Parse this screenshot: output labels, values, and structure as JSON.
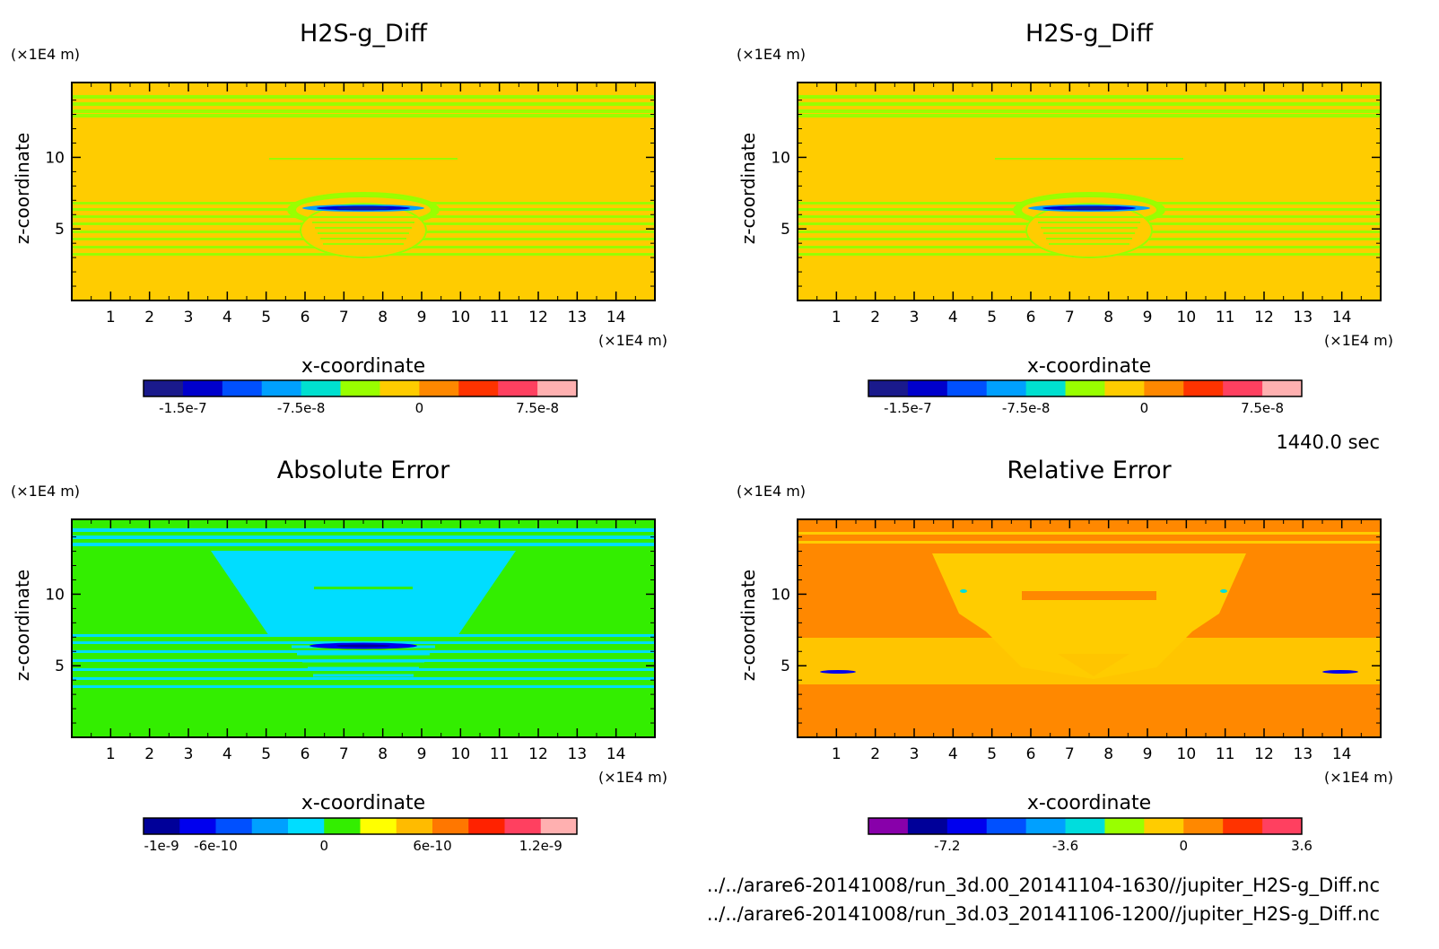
{
  "time_label": "1440.0 sec",
  "file_paths": [
    "../../arare6-20141008/run_3d.00_20141104-1630//jupiter_H2S-g_Diff.nc",
    "../../arare6-20141008/run_3d.03_20141106-1200//jupiter_H2S-g_Diff.nc"
  ],
  "chart_data": [
    {
      "type": "heatmap",
      "title": "H2S-g_Diff",
      "xlabel": "x-coordinate",
      "ylabel": "z-coordinate",
      "x_unit": "(×1E4 m)",
      "y_unit": "(×1E4 m)",
      "xlim": [
        0,
        15
      ],
      "ylim": [
        0,
        15
      ],
      "x_ticks": [
        "1",
        "2",
        "3",
        "4",
        "5",
        "6",
        "7",
        "8",
        "9",
        "10",
        "11",
        "12",
        "13",
        "14"
      ],
      "y_ticks": [
        "5",
        "10"
      ],
      "background_color": "#ffcc00",
      "colorbar": {
        "colors": [
          "#1a1a8c",
          "#0000cc",
          "#0050ff",
          "#00a0ff",
          "#00e0d0",
          "#99ff00",
          "#ffcc00",
          "#ff8800",
          "#ff3300",
          "#ff4060",
          "#ffb0b0"
        ],
        "tick_labels": [
          "-1.5e-7",
          "-7.5e-8",
          "0",
          "7.5e-8"
        ]
      }
    },
    {
      "type": "heatmap",
      "title": "H2S-g_Diff",
      "xlabel": "x-coordinate",
      "ylabel": "z-coordinate",
      "x_unit": "(×1E4 m)",
      "y_unit": "(×1E4 m)",
      "xlim": [
        0,
        15
      ],
      "ylim": [
        0,
        15
      ],
      "x_ticks": [
        "1",
        "2",
        "3",
        "4",
        "5",
        "6",
        "7",
        "8",
        "9",
        "10",
        "11",
        "12",
        "13",
        "14"
      ],
      "y_ticks": [
        "5",
        "10"
      ],
      "background_color": "#ffcc00",
      "colorbar": {
        "colors": [
          "#1a1a8c",
          "#0000cc",
          "#0050ff",
          "#00a0ff",
          "#00e0d0",
          "#99ff00",
          "#ffcc00",
          "#ff8800",
          "#ff3300",
          "#ff4060",
          "#ffb0b0"
        ],
        "tick_labels": [
          "-1.5e-7",
          "-7.5e-8",
          "0",
          "7.5e-8"
        ]
      }
    },
    {
      "type": "heatmap",
      "title": "Absolute Error",
      "xlabel": "x-coordinate",
      "ylabel": "z-coordinate",
      "x_unit": "(×1E4 m)",
      "y_unit": "(×1E4 m)",
      "xlim": [
        0,
        15
      ],
      "ylim": [
        0,
        15
      ],
      "x_ticks": [
        "1",
        "2",
        "3",
        "4",
        "5",
        "6",
        "7",
        "8",
        "9",
        "10",
        "11",
        "12",
        "13",
        "14"
      ],
      "y_ticks": [
        "5",
        "10"
      ],
      "background_color": "#33ee00",
      "colorbar": {
        "colors": [
          "#000099",
          "#0000ee",
          "#0050ff",
          "#00a0ff",
          "#00ddff",
          "#33ee00",
          "#ffff00",
          "#ffbb00",
          "#ff7700",
          "#ff2200",
          "#ff4060",
          "#ffb0b0"
        ],
        "tick_labels": [
          "-1e-9",
          "-6e-10",
          "0",
          "6e-10",
          "1.2e-9"
        ]
      }
    },
    {
      "type": "heatmap",
      "title": "Relative Error",
      "xlabel": "x-coordinate",
      "ylabel": "z-coordinate",
      "x_unit": "(×1E4 m)",
      "y_unit": "(×1E4 m)",
      "xlim": [
        0,
        15
      ],
      "ylim": [
        0,
        15
      ],
      "x_ticks": [
        "1",
        "2",
        "3",
        "4",
        "5",
        "6",
        "7",
        "8",
        "9",
        "10",
        "11",
        "12",
        "13",
        "14"
      ],
      "y_ticks": [
        "5",
        "10"
      ],
      "background_color": "#ff8800",
      "colorbar": {
        "colors": [
          "#8800aa",
          "#000099",
          "#0000ee",
          "#0050ff",
          "#00a0ff",
          "#00dddd",
          "#99ff00",
          "#ffcc00",
          "#ff8800",
          "#ff3300",
          "#ff4060"
        ],
        "tick_labels": [
          "-7.2",
          "-3.6",
          "0",
          "3.6"
        ]
      }
    }
  ]
}
